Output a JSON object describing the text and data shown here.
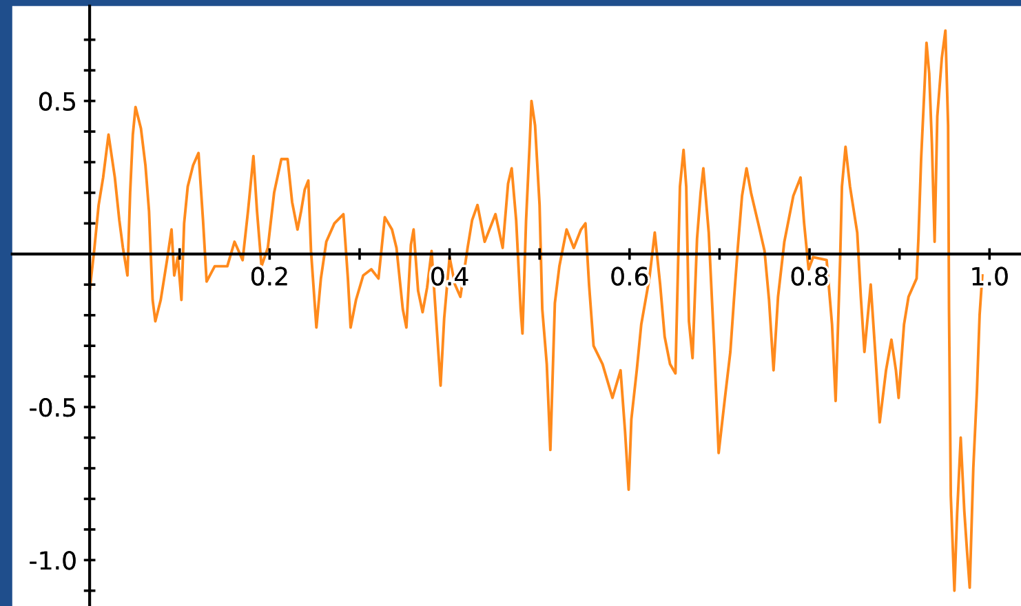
{
  "chart_data": {
    "type": "line",
    "xlim": [
      -0.086,
      1.035
    ],
    "ylim": [
      -1.15,
      0.81
    ],
    "xticks": [
      {
        "value": 0.1,
        "label": null
      },
      0.2,
      {
        "value": 0.3,
        "label": null
      },
      0.4,
      {
        "value": 0.5,
        "label": null
      },
      0.6,
      {
        "value": 0.7,
        "label": null
      },
      0.8,
      {
        "value": 0.9,
        "label": null
      },
      {
        "value": 1.0,
        "label": "1.0"
      }
    ],
    "yticks": [
      {
        "value": -1.1,
        "label": null
      },
      {
        "value": -1.0,
        "label": "-1.0"
      },
      {
        "value": -0.9,
        "label": null
      },
      {
        "value": -0.8,
        "label": null
      },
      {
        "value": -0.7,
        "label": null
      },
      {
        "value": -0.6,
        "label": null
      },
      -0.5,
      {
        "value": -0.4,
        "label": null
      },
      {
        "value": -0.3,
        "label": null
      },
      {
        "value": -0.2,
        "label": null
      },
      {
        "value": -0.1,
        "label": null
      },
      {
        "value": 0.1,
        "label": null
      },
      {
        "value": 0.2,
        "label": null
      },
      {
        "value": 0.3,
        "label": null
      },
      {
        "value": 0.4,
        "label": null
      },
      0.5,
      {
        "value": 0.6,
        "label": null
      },
      {
        "value": 0.7,
        "label": null
      }
    ],
    "x": [
      0.0,
      0.005,
      0.01,
      0.015,
      0.021,
      0.028,
      0.033,
      0.037,
      0.042,
      0.045,
      0.048,
      0.051,
      0.057,
      0.062,
      0.066,
      0.07,
      0.073,
      0.079,
      0.086,
      0.091,
      0.094,
      0.098,
      0.102,
      0.105,
      0.109,
      0.115,
      0.121,
      0.126,
      0.13,
      0.139,
      0.146,
      0.153,
      0.161,
      0.17,
      0.176,
      0.182,
      0.186,
      0.191,
      0.198,
      0.205,
      0.213,
      0.22,
      0.225,
      0.231,
      0.235,
      0.239,
      0.243,
      0.246,
      0.252,
      0.257,
      0.263,
      0.272,
      0.282,
      0.287,
      0.29,
      0.296,
      0.304,
      0.313,
      0.321,
      0.328,
      0.336,
      0.341,
      0.348,
      0.352,
      0.357,
      0.36,
      0.365,
      0.37,
      0.375,
      0.38,
      0.385,
      0.39,
      0.394,
      0.4,
      0.406,
      0.412,
      0.42,
      0.425,
      0.431,
      0.439,
      0.451,
      0.459,
      0.465,
      0.469,
      0.474,
      0.479,
      0.481,
      0.485,
      0.489,
      0.491,
      0.495,
      0.5,
      0.503,
      0.508,
      0.512,
      0.517,
      0.522,
      0.53,
      0.538,
      0.546,
      0.551,
      0.555,
      0.56,
      0.57,
      0.581,
      0.59,
      0.595,
      0.599,
      0.602,
      0.608,
      0.613,
      0.622,
      0.628,
      0.634,
      0.639,
      0.645,
      0.651,
      0.656,
      0.66,
      0.663,
      0.666,
      0.67,
      0.675,
      0.679,
      0.682,
      0.688,
      0.694,
      0.699,
      0.706,
      0.712,
      0.716,
      0.72,
      0.725,
      0.73,
      0.735,
      0.743,
      0.75,
      0.755,
      0.76,
      0.765,
      0.772,
      0.782,
      0.79,
      0.794,
      0.799,
      0.804,
      0.819,
      0.825,
      0.829,
      0.834,
      0.836,
      0.84,
      0.845,
      0.853,
      0.857,
      0.861,
      0.868,
      0.873,
      0.878,
      0.885,
      0.891,
      0.896,
      0.899,
      0.905,
      0.91,
      0.919,
      0.921,
      0.924,
      0.928,
      0.93,
      0.933,
      0.936,
      0.939,
      0.942,
      0.947,
      0.951,
      0.954,
      0.955,
      0.957,
      0.961,
      0.964,
      0.968,
      0.972,
      0.975,
      0.978,
      0.982,
      0.986,
      0.989,
      0.992
    ],
    "series": [
      {
        "color": "#ff8a1c",
        "values": [
          -0.12,
          0.01,
          0.16,
          0.25,
          0.39,
          0.25,
          0.11,
          0.02,
          -0.07,
          0.2,
          0.39,
          0.48,
          0.41,
          0.29,
          0.14,
          -0.15,
          -0.22,
          -0.15,
          -0.02,
          0.08,
          -0.07,
          -0.01,
          -0.15,
          0.1,
          0.22,
          0.29,
          0.33,
          0.11,
          -0.09,
          -0.04,
          -0.04,
          -0.04,
          0.04,
          -0.02,
          0.14,
          0.32,
          0.14,
          -0.04,
          0.02,
          0.2,
          0.31,
          0.31,
          0.17,
          0.08,
          0.14,
          0.21,
          0.24,
          0.01,
          -0.24,
          -0.08,
          0.04,
          0.1,
          0.13,
          -0.08,
          -0.24,
          -0.15,
          -0.07,
          -0.05,
          -0.08,
          0.12,
          0.08,
          0.02,
          -0.18,
          -0.24,
          0.03,
          0.08,
          -0.12,
          -0.19,
          -0.11,
          0.01,
          -0.21,
          -0.43,
          -0.21,
          -0.01,
          -0.1,
          -0.14,
          0.02,
          0.11,
          0.16,
          0.04,
          0.13,
          0.02,
          0.23,
          0.28,
          0.11,
          -0.18,
          -0.26,
          0.11,
          0.36,
          0.5,
          0.42,
          0.16,
          -0.18,
          -0.36,
          -0.64,
          -0.16,
          -0.04,
          0.08,
          0.02,
          0.08,
          0.1,
          -0.1,
          -0.3,
          -0.36,
          -0.47,
          -0.38,
          -0.58,
          -0.77,
          -0.54,
          -0.38,
          -0.23,
          -0.08,
          0.07,
          -0.1,
          -0.27,
          -0.36,
          -0.39,
          0.22,
          0.34,
          0.22,
          -0.22,
          -0.34,
          0.05,
          0.2,
          0.28,
          0.07,
          -0.3,
          -0.65,
          -0.47,
          -0.32,
          -0.15,
          0.01,
          0.19,
          0.28,
          0.2,
          0.1,
          0.01,
          -0.15,
          -0.38,
          -0.14,
          0.04,
          0.19,
          0.25,
          0.1,
          -0.05,
          -0.01,
          -0.02,
          -0.23,
          -0.48,
          -0.02,
          0.22,
          0.35,
          0.22,
          0.07,
          -0.14,
          -0.32,
          -0.1,
          -0.32,
          -0.55,
          -0.38,
          -0.28,
          -0.38,
          -0.47,
          -0.23,
          -0.14,
          -0.08,
          0.05,
          0.31,
          0.56,
          0.69,
          0.59,
          0.36,
          0.04,
          0.45,
          0.64,
          0.73,
          0.42,
          -0.18,
          -0.79,
          -1.1,
          -0.85,
          -0.6,
          -0.84,
          -0.97,
          -1.09,
          -0.7,
          -0.45,
          -0.2,
          -0.07
        ]
      }
    ]
  }
}
